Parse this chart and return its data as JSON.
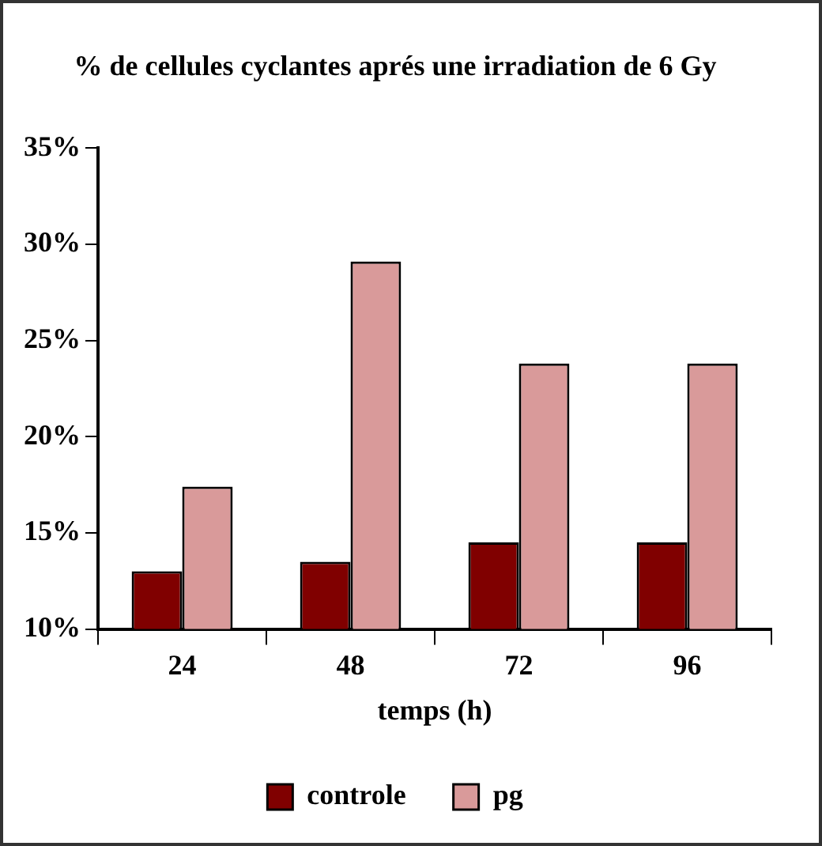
{
  "chart_data": {
    "type": "bar",
    "title": "% de cellules cyclantes aprés une irradiation de 6 Gy",
    "xlabel": "temps (h)",
    "categories": [
      "24",
      "48",
      "72",
      "96"
    ],
    "series": [
      {
        "name": "controle",
        "color": "#800000",
        "values": [
          13,
          13.5,
          14.5,
          14.5
        ]
      },
      {
        "name": "pg",
        "color": "#d99a9a",
        "values": [
          17.4,
          29.1,
          23.8,
          23.8
        ]
      }
    ],
    "ylim": [
      10,
      35
    ],
    "yticks": [
      {
        "value": 10,
        "label": "10%"
      },
      {
        "value": 15,
        "label": "15%"
      },
      {
        "value": 20,
        "label": "20%"
      },
      {
        "value": 25,
        "label": "25%"
      },
      {
        "value": 30,
        "label": "30%"
      },
      {
        "value": 35,
        "label": "35%"
      }
    ],
    "grid": false,
    "legend": "bottom"
  }
}
